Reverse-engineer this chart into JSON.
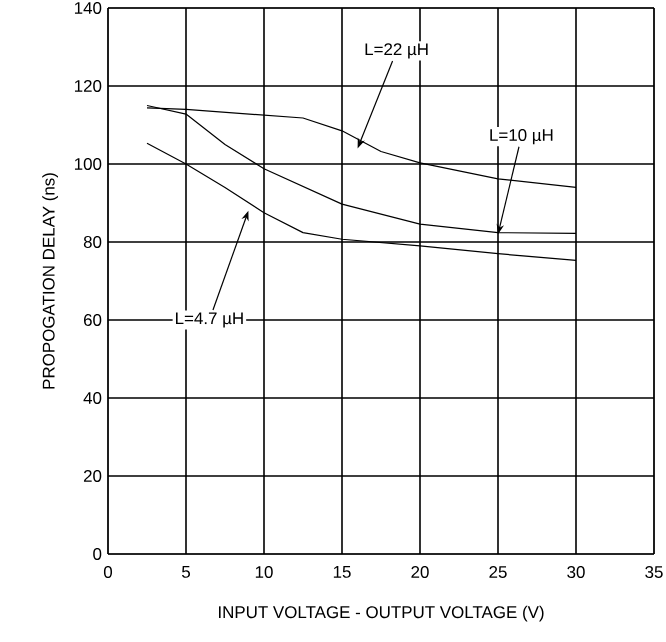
{
  "chart_data": {
    "type": "line",
    "xlabel": "INPUT VOLTAGE - OUTPUT VOLTAGE (V)",
    "ylabel": "PROPOGATION DELAY (ns)",
    "xlim": [
      0,
      35
    ],
    "ylim": [
      0,
      140
    ],
    "xticks": [
      0,
      5,
      10,
      15,
      20,
      25,
      30,
      35
    ],
    "yticks": [
      0,
      20,
      40,
      60,
      80,
      100,
      120,
      140
    ],
    "grid": true,
    "marker": "none",
    "line_style": "solid",
    "series": [
      {
        "color": "#000000",
        "x": [
          2.5,
          5,
          12.5,
          15,
          17.5,
          20,
          25,
          30
        ],
        "values": [
          114.4,
          114,
          111.8,
          108.5,
          103.2,
          100.3,
          96.2,
          94
        ]
      },
      {
        "color": "#000000",
        "x": [
          2.5,
          5,
          7.5,
          10,
          15,
          20,
          25,
          30
        ],
        "values": [
          115,
          112.8,
          105,
          98.8,
          89.7,
          84.6,
          82.4,
          82.2
        ]
      },
      {
        "color": "#000000",
        "x": [
          2.5,
          5,
          7.5,
          10,
          12.5,
          15,
          20,
          25,
          30
        ],
        "values": [
          105.3,
          100,
          94,
          87.5,
          82.4,
          80.7,
          79,
          77,
          75.3
        ]
      }
    ],
    "annotations": [
      {
        "text": "L=22 µH",
        "x": 16,
        "y": 104
      },
      {
        "text": "L=10 µH",
        "x": 25,
        "y": 82
      },
      {
        "text": "L=4.7 µH",
        "x": 9,
        "y": 88
      }
    ]
  }
}
